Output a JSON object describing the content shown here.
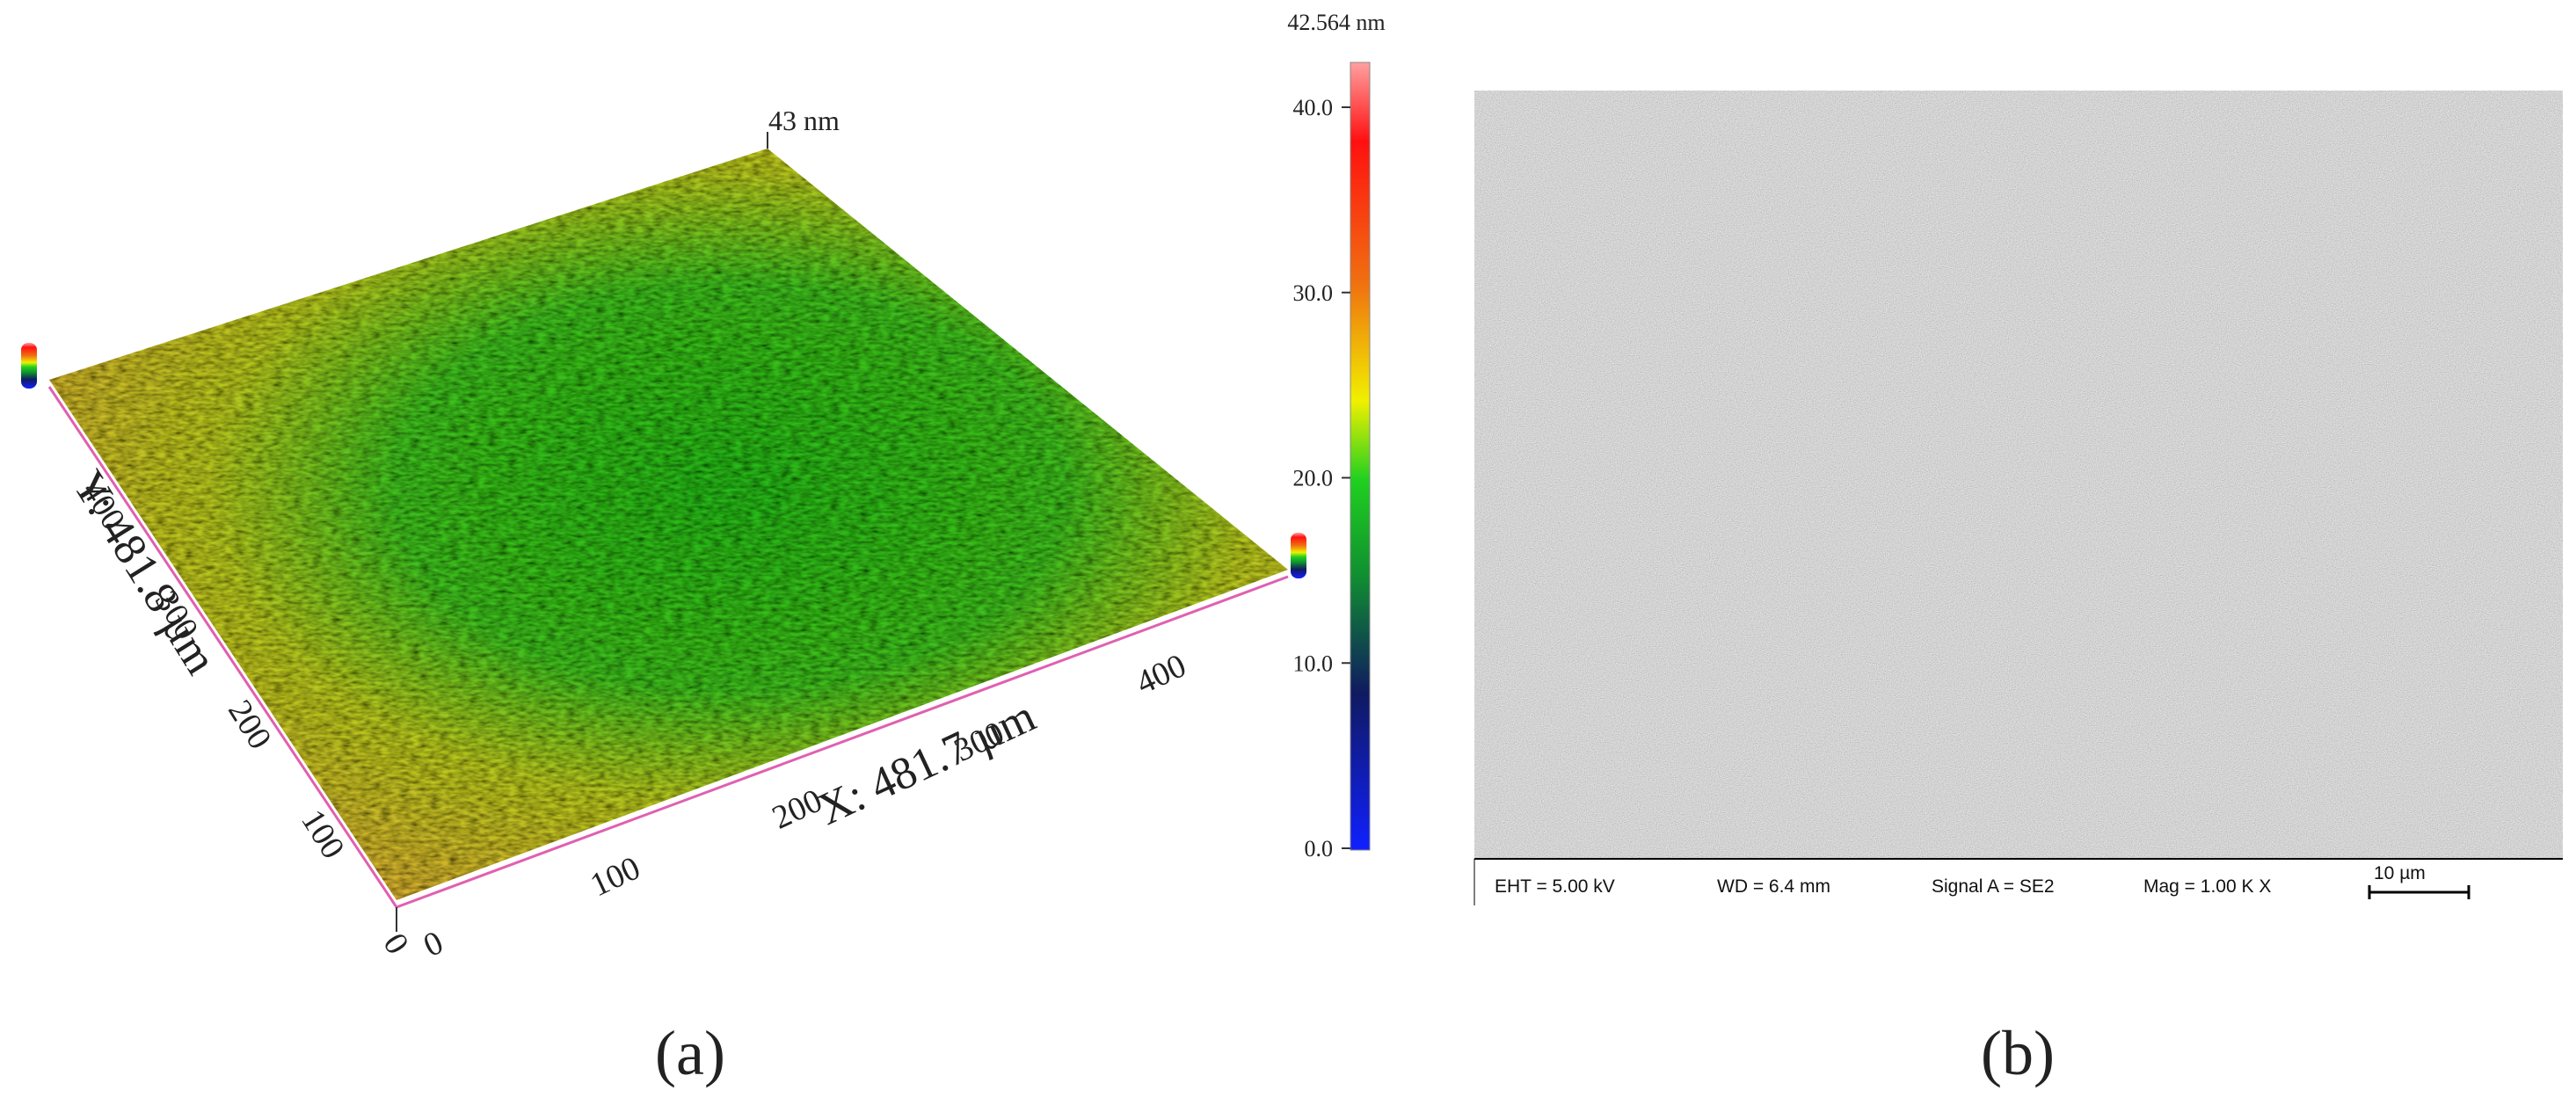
{
  "panels": [
    {
      "label": "(a)",
      "peak_label": "43 nm",
      "colorbar": {
        "max_label": "42.564 nm",
        "ticks": [
          "40.0",
          "30.0",
          "20.0",
          "10.0",
          "0.0"
        ]
      },
      "x_axis": {
        "label": "X: 481.7 µm",
        "ticks": [
          "0",
          "100",
          "200",
          "300",
          "400"
        ]
      },
      "y_axis": {
        "label": "Y: 481.8 µm",
        "ticks": [
          "0",
          "100",
          "200",
          "300",
          "400"
        ]
      }
    },
    {
      "label": "(b)",
      "info": [
        "EHT = 5.00 kV",
        "WD = 6.4 mm",
        "Signal A = SE2",
        "Mag = 1.00 K X"
      ],
      "scale_bar": "10 µm"
    }
  ]
}
